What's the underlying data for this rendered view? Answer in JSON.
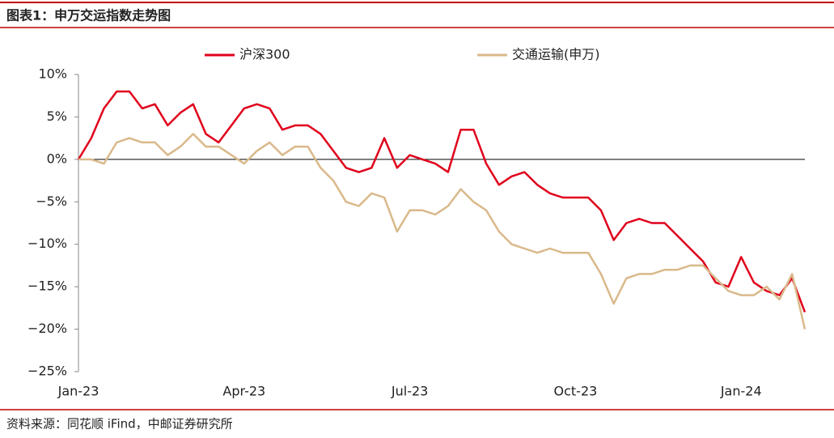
{
  "header": {
    "title": "图表1：申万交运指数走势图"
  },
  "chart_data": {
    "type": "line",
    "categories": [
      "Jan-23",
      null,
      null,
      null,
      null,
      null,
      null,
      null,
      null,
      null,
      null,
      null,
      null,
      "Apr-23",
      null,
      null,
      null,
      null,
      null,
      null,
      null,
      null,
      null,
      null,
      null,
      null,
      "Jul-23",
      null,
      null,
      null,
      null,
      null,
      null,
      null,
      null,
      null,
      null,
      null,
      null,
      "Oct-23",
      null,
      null,
      null,
      null,
      null,
      null,
      null,
      null,
      null,
      null,
      null,
      null,
      "Jan-24",
      null,
      null,
      null,
      null,
      null
    ],
    "series": [
      {
        "name": "沪深300",
        "color": "#e0001b",
        "values": [
          0,
          2.5,
          6,
          8,
          8,
          6,
          6.5,
          4,
          5.5,
          6.5,
          3,
          2,
          4,
          6,
          6.5,
          6,
          3.5,
          4,
          4,
          3,
          1,
          -1,
          -1.5,
          -1,
          2.5,
          -1,
          0.5,
          0,
          -0.5,
          -1.5,
          3.5,
          3.5,
          -0.5,
          -3,
          -2,
          -1.5,
          -3,
          -4,
          -4.5,
          -4.5,
          -4.5,
          -6,
          -9.5,
          -7.5,
          -7,
          -7.5,
          -7.5,
          -9,
          -10.5,
          -12,
          -14.5,
          -15,
          -11.5,
          -14.5,
          -15.5,
          -16,
          -14,
          -18
        ]
      },
      {
        "name": "交通运输(申万)",
        "color": "#d9b98a",
        "values": [
          0,
          0,
          -0.5,
          2,
          2.5,
          2,
          2,
          0.5,
          1.5,
          3,
          1.5,
          1.5,
          0.5,
          -0.5,
          1,
          2,
          0.5,
          1.5,
          1.5,
          -1,
          -2.5,
          -5,
          -5.5,
          -4,
          -4.5,
          -8.5,
          -6,
          -6,
          -6.5,
          -5.5,
          -3.5,
          -5,
          -6,
          -8.5,
          -10,
          -10.5,
          -11,
          -10.5,
          -11,
          -11,
          -11,
          -13.5,
          -17,
          -14,
          -13.5,
          -13.5,
          -13,
          -13,
          -12.5,
          -12.5,
          -14,
          -15.5,
          -16,
          -16,
          -15,
          -16.5,
          -13.5,
          -20
        ]
      }
    ],
    "ylim": [
      -25,
      10
    ],
    "yticks": [
      {
        "value": -25,
        "label": "−25%"
      },
      {
        "value": -20,
        "label": "−20%"
      },
      {
        "value": -15,
        "label": "−15%"
      },
      {
        "value": -10,
        "label": "−10%"
      },
      {
        "value": -5,
        "label": "−5%"
      },
      {
        "value": 0,
        "label": "0%"
      },
      {
        "value": 5,
        "label": "5%"
      },
      {
        "value": 10,
        "label": "10%"
      }
    ],
    "legend": "top"
  },
  "footer": {
    "source": "资料来源：同花顺 iFind，中邮证券研究所"
  }
}
